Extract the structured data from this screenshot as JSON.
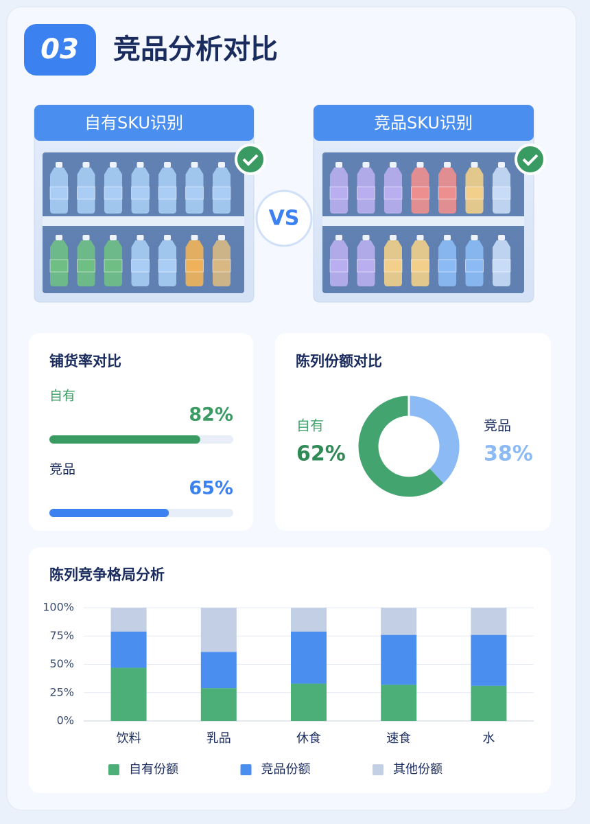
{
  "header": {
    "badge": "03",
    "title": "竞品分析对比"
  },
  "shelves": {
    "own_title": "自有SKU识别",
    "competitor_title": "竞品SKU识别",
    "vs": "VS"
  },
  "chart_data": [
    {
      "type": "progress",
      "title": "铺货率对比",
      "categories": [
        "自有",
        "竞品"
      ],
      "values": [
        82,
        65
      ],
      "value_labels": [
        "82%",
        "65%"
      ],
      "colors": [
        "#3a9b62",
        "#3b82f0"
      ],
      "xlim": [
        0,
        100
      ]
    },
    {
      "type": "donut",
      "title": "陈列份额对比",
      "categories": [
        "自有",
        "竞品"
      ],
      "values": [
        62,
        38
      ],
      "value_labels": [
        "62%",
        "38%"
      ],
      "colors": [
        "#44a46f",
        "#8cbaf5"
      ]
    },
    {
      "type": "stacked_bar",
      "title": "陈列竞争格局分析",
      "categories": [
        "饮料",
        "乳品",
        "休食",
        "速食",
        "水"
      ],
      "series": [
        {
          "name": "自有份额",
          "color": "#4caf78",
          "values": [
            47,
            29,
            33,
            32,
            31
          ]
        },
        {
          "name": "竞品份额",
          "color": "#4a8ef0",
          "values": [
            32,
            32,
            46,
            44,
            45
          ]
        },
        {
          "name": "其他份额",
          "color": "#c3cfe4",
          "values": [
            21,
            39,
            21,
            24,
            24
          ]
        }
      ],
      "ylim": [
        0,
        100
      ],
      "yticks": [
        {
          "value": 0,
          "label": "0%"
        },
        {
          "value": 25,
          "label": "25%"
        },
        {
          "value": 50,
          "label": "50%"
        },
        {
          "value": 75,
          "label": "75%"
        },
        {
          "value": 100,
          "label": "100%"
        }
      ],
      "grid": true
    }
  ]
}
